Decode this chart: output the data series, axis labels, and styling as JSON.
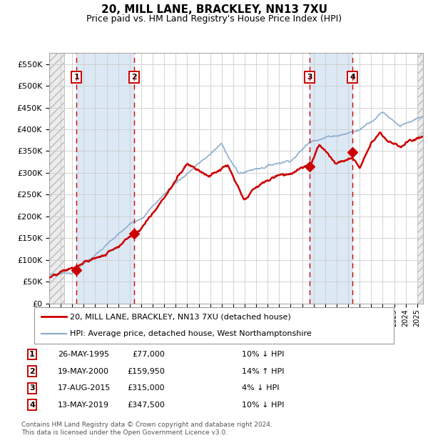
{
  "title": "20, MILL LANE, BRACKLEY, NN13 7XU",
  "subtitle": "Price paid vs. HM Land Registry's House Price Index (HPI)",
  "ylabel_ticks": [
    "£0",
    "£50K",
    "£100K",
    "£150K",
    "£200K",
    "£250K",
    "£300K",
    "£350K",
    "£400K",
    "£450K",
    "£500K",
    "£550K"
  ],
  "ytick_values": [
    0,
    50000,
    100000,
    150000,
    200000,
    250000,
    300000,
    350000,
    400000,
    450000,
    500000,
    550000
  ],
  "ylim": [
    0,
    575000
  ],
  "xlim_start": 1993.0,
  "xlim_end": 2025.5,
  "sale_points": [
    {
      "year": 1995.38,
      "price": 77000,
      "label": "1"
    },
    {
      "year": 2000.38,
      "price": 159950,
      "label": "2"
    },
    {
      "year": 2015.63,
      "price": 315000,
      "label": "3"
    },
    {
      "year": 2019.37,
      "price": 347500,
      "label": "4"
    }
  ],
  "legend_entries": [
    {
      "label": "20, MILL LANE, BRACKLEY, NN13 7XU (detached house)",
      "color": "#cc0000",
      "lw": 1.8
    },
    {
      "label": "HPI: Average price, detached house, West Northamptonshire",
      "color": "#88aacc",
      "lw": 1.3
    }
  ],
  "table_rows": [
    {
      "num": "1",
      "date": "26-MAY-1995",
      "price": "£77,000",
      "hpi": "10% ↓ HPI"
    },
    {
      "num": "2",
      "date": "19-MAY-2000",
      "price": "£159,950",
      "hpi": "14% ↑ HPI"
    },
    {
      "num": "3",
      "date": "17-AUG-2015",
      "price": "£315,000",
      "hpi": "4% ↓ HPI"
    },
    {
      "num": "4",
      "date": "13-MAY-2019",
      "price": "£347,500",
      "hpi": "10% ↓ HPI"
    }
  ],
  "footer": "Contains HM Land Registry data © Crown copyright and database right 2024.\nThis data is licensed under the Open Government Licence v3.0.",
  "grid_color": "#cccccc",
  "sale_vline_color": "#cc0000",
  "sale_marker_color": "#cc0000",
  "bg_shaded_color": "#dce9f5",
  "hatch_color": "#cccccc",
  "hatch_pattern": "///",
  "hatch_edge_color": "#bbbbbb"
}
